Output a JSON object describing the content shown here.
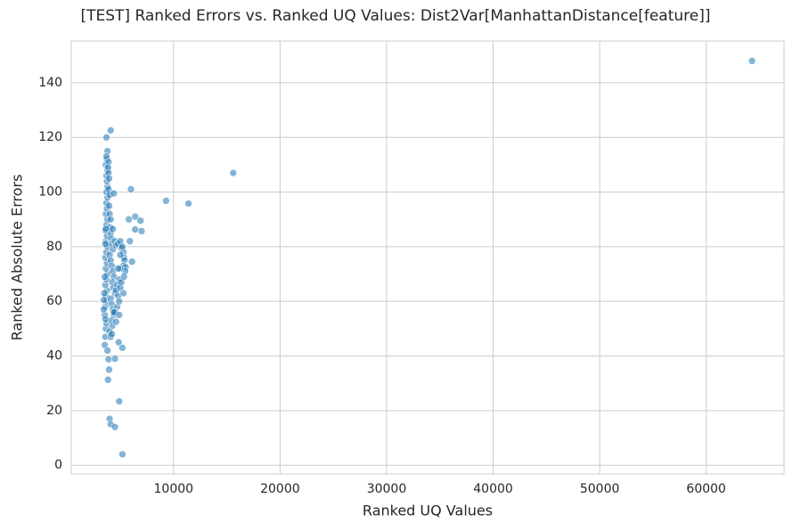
{
  "chart_data": {
    "type": "scatter",
    "title": "[TEST] Ranked Errors vs. Ranked UQ Values: Dist2Var[ManhattanDistance[feature]]",
    "x_label": "Ranked UQ Values",
    "y_label": "Ranked Absolute Errors",
    "color": "#1f77b4",
    "grid": true,
    "xlim": [
      400,
      67300
    ],
    "ylim": [
      -3.2,
      155.3
    ],
    "xticks": [
      10000,
      20000,
      30000,
      40000,
      50000,
      60000
    ],
    "yticks": [
      0,
      20,
      40,
      60,
      80,
      100,
      120,
      140
    ],
    "x": [
      64300,
      15600,
      11400,
      9300,
      6000,
      5800,
      6400,
      6900,
      7000,
      6400,
      5900,
      6100,
      4900,
      5200,
      4000,
      4100,
      4500,
      4500,
      3950,
      3900,
      3850,
      4850,
      5200,
      3700,
      4100,
      3800,
      3600,
      3650,
      3700,
      3550,
      3600,
      3700,
      3650,
      3750,
      3600,
      3700,
      3800,
      3650,
      3750,
      3600,
      3700,
      3800,
      3650,
      3750,
      3600,
      3700,
      3800,
      3650,
      3750,
      3700,
      3800,
      3700,
      3800,
      3750,
      3700,
      3800,
      3650,
      3750,
      3700,
      3900,
      3850,
      3900,
      3950,
      3900,
      4000,
      3950,
      4000,
      4100,
      4050,
      4100,
      4150,
      4200,
      4300,
      4000,
      4100,
      4200,
      4300,
      4400,
      4250,
      4350,
      4500,
      4100,
      4200,
      4300,
      4400,
      4150,
      4250,
      4000,
      4100,
      4400,
      4300,
      4500,
      4600,
      4800,
      5000,
      5100,
      5300,
      5350,
      5400,
      5300,
      5500,
      5450,
      5000,
      4900,
      4700,
      4600,
      4800,
      5300,
      5000,
      4700,
      4500,
      4400,
      4200,
      4600,
      4900,
      5100,
      3550,
      3800,
      3600,
      3550,
      3600,
      3650,
      4800,
      5200,
      5000,
      5350,
      4900,
      3450,
      3500,
      3450
    ],
    "y": [
      148,
      107,
      95.8,
      96.8,
      101,
      90,
      91,
      89.5,
      85.7,
      86.3,
      82,
      74.5,
      23.4,
      4,
      17,
      15,
      14,
      39,
      35,
      38.8,
      31.3,
      45,
      43,
      120,
      122.6,
      115,
      47,
      50,
      52,
      55,
      58,
      60,
      62,
      64,
      66,
      68,
      70,
      72,
      74,
      76,
      78,
      80,
      82,
      84,
      86,
      88,
      90,
      92,
      94,
      96,
      98,
      100,
      102,
      104,
      106,
      108,
      110,
      112,
      113,
      111,
      109,
      107,
      105,
      101,
      99,
      95,
      92,
      90,
      87,
      85,
      83,
      81,
      79,
      77,
      75,
      73,
      71,
      69,
      67,
      65,
      63,
      61,
      59,
      57,
      55,
      53,
      51,
      49,
      47,
      99.5,
      86.5,
      82,
      80.5,
      81,
      82,
      79.5,
      78,
      76,
      75,
      73,
      72.5,
      71,
      72,
      68,
      66,
      64,
      62,
      63,
      65,
      58,
      56,
      56,
      48,
      52.5,
      60,
      67,
      44,
      42,
      53.5,
      69,
      81,
      86.5,
      72,
      80,
      77,
      69,
      55,
      60.5,
      63,
      57
    ]
  }
}
